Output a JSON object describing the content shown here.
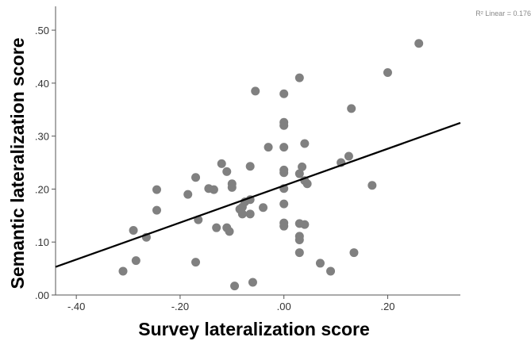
{
  "chart_data": {
    "type": "scatter",
    "xlabel": "Survey lateralization score",
    "ylabel": "Semantic lateralization score",
    "xlim": [
      -0.44,
      0.34
    ],
    "ylim": [
      0.0,
      0.545
    ],
    "x_ticks": [
      {
        "value": -0.4,
        "label": "-.40"
      },
      {
        "value": -0.2,
        "label": "-.20"
      },
      {
        "value": 0.0,
        "label": ".00"
      },
      {
        "value": 0.2,
        "label": ".20"
      }
    ],
    "y_ticks": [
      {
        "value": 0.0,
        "label": ".00"
      },
      {
        "value": 0.1,
        "label": ".10"
      },
      {
        "value": 0.2,
        "label": ".20"
      },
      {
        "value": 0.3,
        "label": ".30"
      },
      {
        "value": 0.4,
        "label": ".40"
      },
      {
        "value": 0.5,
        "label": ".50"
      }
    ],
    "grid": false,
    "legend": "none",
    "marker_color": "#808080",
    "line_color": "#000000",
    "fit_line": {
      "label": "R² Linear = 0.176",
      "x": [
        -0.44,
        0.34
      ],
      "y": [
        0.053,
        0.325
      ]
    },
    "points": [
      {
        "x": 0.26,
        "y": 0.475
      },
      {
        "x": 0.2,
        "y": 0.42
      },
      {
        "x": 0.03,
        "y": 0.41
      },
      {
        "x": -0.055,
        "y": 0.385
      },
      {
        "x": 0.0,
        "y": 0.38
      },
      {
        "x": 0.13,
        "y": 0.352
      },
      {
        "x": 0.0,
        "y": 0.326
      },
      {
        "x": 0.0,
        "y": 0.32
      },
      {
        "x": 0.04,
        "y": 0.286
      },
      {
        "x": -0.03,
        "y": 0.279
      },
      {
        "x": 0.0,
        "y": 0.279
      },
      {
        "x": 0.125,
        "y": 0.262
      },
      {
        "x": 0.11,
        "y": 0.25
      },
      {
        "x": -0.12,
        "y": 0.248
      },
      {
        "x": -0.065,
        "y": 0.243
      },
      {
        "x": 0.035,
        "y": 0.242
      },
      {
        "x": -0.11,
        "y": 0.233
      },
      {
        "x": 0.0,
        "y": 0.236
      },
      {
        "x": 0.0,
        "y": 0.231
      },
      {
        "x": 0.03,
        "y": 0.229
      },
      {
        "x": -0.17,
        "y": 0.222
      },
      {
        "x": 0.04,
        "y": 0.216
      },
      {
        "x": 0.045,
        "y": 0.21
      },
      {
        "x": -0.1,
        "y": 0.21
      },
      {
        "x": -0.1,
        "y": 0.203
      },
      {
        "x": 0.17,
        "y": 0.207
      },
      {
        "x": 0.0,
        "y": 0.201
      },
      {
        "x": -0.145,
        "y": 0.201
      },
      {
        "x": -0.135,
        "y": 0.199
      },
      {
        "x": -0.245,
        "y": 0.199
      },
      {
        "x": -0.185,
        "y": 0.19
      },
      {
        "x": -0.065,
        "y": 0.18
      },
      {
        "x": -0.075,
        "y": 0.176
      },
      {
        "x": -0.08,
        "y": 0.166
      },
      {
        "x": 0.0,
        "y": 0.172
      },
      {
        "x": -0.04,
        "y": 0.165
      },
      {
        "x": -0.085,
        "y": 0.162
      },
      {
        "x": -0.08,
        "y": 0.153
      },
      {
        "x": -0.065,
        "y": 0.153
      },
      {
        "x": -0.245,
        "y": 0.16
      },
      {
        "x": -0.165,
        "y": 0.142
      },
      {
        "x": 0.0,
        "y": 0.136
      },
      {
        "x": 0.03,
        "y": 0.135
      },
      {
        "x": 0.04,
        "y": 0.133
      },
      {
        "x": 0.0,
        "y": 0.13
      },
      {
        "x": -0.13,
        "y": 0.127
      },
      {
        "x": -0.11,
        "y": 0.127
      },
      {
        "x": -0.105,
        "y": 0.12
      },
      {
        "x": -0.29,
        "y": 0.122
      },
      {
        "x": -0.265,
        "y": 0.109
      },
      {
        "x": 0.03,
        "y": 0.111
      },
      {
        "x": 0.03,
        "y": 0.104
      },
      {
        "x": 0.135,
        "y": 0.08
      },
      {
        "x": 0.03,
        "y": 0.08
      },
      {
        "x": -0.17,
        "y": 0.062
      },
      {
        "x": -0.285,
        "y": 0.065
      },
      {
        "x": 0.07,
        "y": 0.06
      },
      {
        "x": -0.31,
        "y": 0.045
      },
      {
        "x": 0.09,
        "y": 0.045
      },
      {
        "x": -0.06,
        "y": 0.024
      },
      {
        "x": -0.095,
        "y": 0.017
      }
    ]
  }
}
